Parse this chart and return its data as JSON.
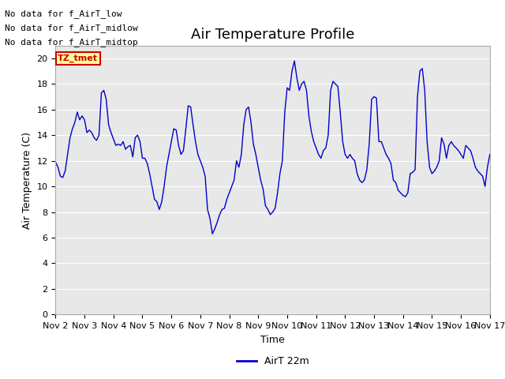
{
  "title": "Air Temperature Profile",
  "xlabel": "Time",
  "ylabel": "Air Temperature (C)",
  "line_color": "#0000CC",
  "line_label": "AirT 22m",
  "ylim": [
    0,
    21
  ],
  "yticks": [
    0,
    2,
    4,
    6,
    8,
    10,
    12,
    14,
    16,
    18,
    20
  ],
  "xtick_labels": [
    "Nov 2",
    "Nov 3",
    "Nov 4",
    "Nov 5",
    "Nov 6",
    "Nov 7",
    "Nov 8",
    "Nov 9",
    "Nov 10",
    "Nov 11",
    "Nov 12",
    "Nov 13",
    "Nov 14",
    "Nov 15",
    "Nov 16",
    "Nov 17"
  ],
  "annotations": [
    "No data for f_AirT_low",
    "No data for f_AirT_midlow",
    "No data for f_AirT_midtop"
  ],
  "tz_label": "TZ_tmet",
  "fig_bg_color": "#ffffff",
  "plot_bg_color": "#e8e8e8",
  "grid_color": "#ffffff",
  "title_fontsize": 13,
  "axis_fontsize": 9,
  "tick_fontsize": 8,
  "annot_fontsize": 8,
  "legend_box_facecolor": "#ffff99",
  "legend_box_edgecolor": "#cc0000",
  "legend_text_color": "#cc0000",
  "x_values": [
    0.0,
    0.083,
    0.167,
    0.25,
    0.333,
    0.417,
    0.5,
    0.583,
    0.667,
    0.75,
    0.833,
    0.917,
    1.0,
    1.083,
    1.167,
    1.25,
    1.333,
    1.417,
    1.5,
    1.583,
    1.667,
    1.75,
    1.833,
    1.917,
    2.0,
    2.083,
    2.167,
    2.25,
    2.333,
    2.417,
    2.5,
    2.583,
    2.667,
    2.75,
    2.833,
    2.917,
    3.0,
    3.083,
    3.167,
    3.25,
    3.333,
    3.417,
    3.5,
    3.583,
    3.667,
    3.75,
    3.833,
    3.917,
    4.0,
    4.083,
    4.167,
    4.25,
    4.333,
    4.417,
    4.5,
    4.583,
    4.667,
    4.75,
    4.833,
    4.917,
    5.0,
    5.083,
    5.167,
    5.25,
    5.333,
    5.417,
    5.5,
    5.583,
    5.667,
    5.75,
    5.833,
    5.917,
    6.0,
    6.083,
    6.167,
    6.25,
    6.333,
    6.417,
    6.5,
    6.583,
    6.667,
    6.75,
    6.833,
    6.917,
    7.0,
    7.083,
    7.167,
    7.25,
    7.333,
    7.417,
    7.5,
    7.583,
    7.667,
    7.75,
    7.833,
    7.917,
    8.0,
    8.083,
    8.167,
    8.25,
    8.333,
    8.417,
    8.5,
    8.583,
    8.667,
    8.75,
    8.833,
    8.917,
    9.0,
    9.083,
    9.167,
    9.25,
    9.333,
    9.417,
    9.5,
    9.583,
    9.667,
    9.75,
    9.833,
    9.917,
    10.0,
    10.083,
    10.167,
    10.25,
    10.333,
    10.417,
    10.5,
    10.583,
    10.667,
    10.75,
    10.833,
    10.917,
    11.0,
    11.083,
    11.167,
    11.25,
    11.333,
    11.417,
    11.5,
    11.583,
    11.667,
    11.75,
    11.833,
    11.917,
    12.0,
    12.083,
    12.167,
    12.25,
    12.333,
    12.417,
    12.5,
    12.583,
    12.667,
    12.75,
    12.833,
    12.917,
    13.0,
    13.083,
    13.167,
    13.25,
    13.333,
    13.417,
    13.5,
    13.583,
    13.667,
    13.75,
    13.833,
    13.917,
    14.0,
    14.083,
    14.167,
    14.25,
    14.333,
    14.417,
    14.5,
    14.583,
    14.667,
    14.75,
    14.833,
    14.917,
    15.0
  ],
  "y_values": [
    11.9,
    11.5,
    10.8,
    10.7,
    11.2,
    12.5,
    13.8,
    14.5,
    15.0,
    15.8,
    15.2,
    15.5,
    15.2,
    14.2,
    14.4,
    14.2,
    13.8,
    13.6,
    14.0,
    17.3,
    17.5,
    16.8,
    14.8,
    14.2,
    13.7,
    13.2,
    13.3,
    13.2,
    13.5,
    12.9,
    13.1,
    13.2,
    12.3,
    13.8,
    14.0,
    13.5,
    12.2,
    12.2,
    11.8,
    11.0,
    10.0,
    9.0,
    8.8,
    8.2,
    8.8,
    10.0,
    11.5,
    12.5,
    13.5,
    14.5,
    14.4,
    13.2,
    12.5,
    12.8,
    14.5,
    16.3,
    16.2,
    14.8,
    13.5,
    12.5,
    12.0,
    11.5,
    10.8,
    8.2,
    7.5,
    6.3,
    6.7,
    7.2,
    7.8,
    8.2,
    8.3,
    9.0,
    9.5,
    10.0,
    10.5,
    12.0,
    11.5,
    12.5,
    14.8,
    16.0,
    16.2,
    15.0,
    13.3,
    12.5,
    11.5,
    10.5,
    9.8,
    8.5,
    8.2,
    7.8,
    8.0,
    8.3,
    9.5,
    11.0,
    12.0,
    15.8,
    17.7,
    17.5,
    19.0,
    19.8,
    18.5,
    17.5,
    18.0,
    18.2,
    17.5,
    15.5,
    14.3,
    13.5,
    13.0,
    12.5,
    12.2,
    12.8,
    13.0,
    14.0,
    17.5,
    18.2,
    18.0,
    17.8,
    15.8,
    13.5,
    12.5,
    12.2,
    12.5,
    12.2,
    12.0,
    11.0,
    10.5,
    10.3,
    10.5,
    11.3,
    13.3,
    16.8,
    17.0,
    16.9,
    13.5,
    13.5,
    13.0,
    12.5,
    12.2,
    11.8,
    10.5,
    10.3,
    9.7,
    9.5,
    9.3,
    9.2,
    9.5,
    11.0,
    11.1,
    11.3,
    17.0,
    19.0,
    19.2,
    17.5,
    13.5,
    11.5,
    11.0,
    11.2,
    11.5,
    12.0,
    13.8,
    13.3,
    12.2,
    13.2,
    13.5,
    13.2,
    13.0,
    12.8,
    12.5,
    12.2,
    13.2,
    13.0,
    12.8,
    12.2,
    11.5,
    11.2,
    11.0,
    10.8,
    10.0,
    11.5,
    12.5
  ]
}
